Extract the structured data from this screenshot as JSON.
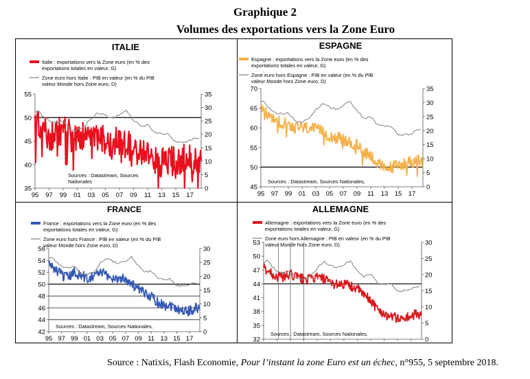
{
  "page": {
    "title_line1": "Graphique 2",
    "title_line2": "Volumes des exportations vers la Zone Euro",
    "source_prefix": "Source : Natixis, Flash Economie, ",
    "source_italic": "Pour l’instant la zone Euro est un échec",
    "source_suffix": ", n°955, 5 septembre 2018."
  },
  "chart_data": [
    {
      "type": "line",
      "title": "ITALIE",
      "x_ticks": [
        "95",
        "97",
        "99",
        "01",
        "03",
        "05",
        "07",
        "09",
        "11",
        "13",
        "15",
        "17"
      ],
      "x_range": [
        1995,
        2018.6
      ],
      "left_axis": {
        "range": [
          35,
          55
        ],
        "ticks": [
          35,
          40,
          45,
          50,
          55
        ]
      },
      "right_axis": {
        "range": [
          0,
          35
        ],
        "ticks": [
          0,
          5,
          10,
          15,
          20,
          25,
          30,
          35
        ]
      },
      "reference_line": 50,
      "note": "Sources : Datastream, Sources Nationales",
      "series": [
        {
          "name": "Italie : exportations vers la Zone euro (en % des exportations totales en valeur, G)",
          "axis": "left",
          "color": "#e8101e",
          "volatility": 3.2,
          "points": [
            [
              1995,
              49
            ],
            [
              1996,
              47.5
            ],
            [
              1997,
              46
            ],
            [
              1998,
              46.5
            ],
            [
              1999,
              47.5
            ],
            [
              2000,
              47
            ],
            [
              2001,
              46
            ],
            [
              2002,
              46
            ],
            [
              2003,
              46.5
            ],
            [
              2004,
              45.5
            ],
            [
              2005,
              45
            ],
            [
              2006,
              45
            ],
            [
              2007,
              44.5
            ],
            [
              2008,
              44
            ],
            [
              2009,
              44
            ],
            [
              2010,
              42.5
            ],
            [
              2011,
              42
            ],
            [
              2012,
              41
            ],
            [
              2013,
              40.5
            ],
            [
              2014,
              41
            ],
            [
              2015,
              40.5
            ],
            [
              2016,
              41.5
            ],
            [
              2017,
              41
            ],
            [
              2018,
              41
            ],
            [
              2018.6,
              40.5
            ]
          ]
        },
        {
          "name": "Zone euro hors Italie : PIB en valeur (en % du PIB valeur Monde hors Zone euro, D)",
          "axis": "right",
          "color": "#8a8a8a",
          "points": [
            [
              1995,
              28.5
            ],
            [
              1995.5,
              29
            ],
            [
              1996,
              27
            ],
            [
              1997,
              25
            ],
            [
              1998,
              24.5
            ],
            [
              1999,
              25
            ],
            [
              2000,
              22
            ],
            [
              2001,
              21.5
            ],
            [
              2002,
              23
            ],
            [
              2003,
              26
            ],
            [
              2004,
              28
            ],
            [
              2005,
              27
            ],
            [
              2006,
              26
            ],
            [
              2007,
              27.5
            ],
            [
              2008,
              29
            ],
            [
              2008.5,
              27
            ],
            [
              2009,
              25.5
            ],
            [
              2010,
              23
            ],
            [
              2011,
              23.5
            ],
            [
              2012,
              20.5
            ],
            [
              2013,
              20
            ],
            [
              2014,
              20
            ],
            [
              2015,
              17
            ],
            [
              2016,
              17
            ],
            [
              2017,
              17.5
            ],
            [
              2017.5,
              18.5
            ],
            [
              2018.3,
              18.5
            ]
          ]
        }
      ]
    },
    {
      "type": "line",
      "title": "ESPAGNE",
      "x_ticks": [
        "95",
        "97",
        "99",
        "01",
        "03",
        "05",
        "07",
        "09",
        "11",
        "13",
        "15",
        "17"
      ],
      "x_range": [
        1995,
        2018.6
      ],
      "left_axis": {
        "range": [
          45,
          70
        ],
        "ticks": [
          45,
          50,
          55,
          60,
          65,
          70
        ]
      },
      "right_axis": {
        "range": [
          0,
          35
        ],
        "ticks": [
          0,
          5,
          10,
          15,
          20,
          25,
          30,
          35
        ]
      },
      "reference_line": 50,
      "note": "Sources : Datastream, Sources Nationales,",
      "series": [
        {
          "name": "Espagne : exportations vers la Zone euro (en % des exportations totales en valeur, G)",
          "axis": "left",
          "color": "#f5b04a",
          "volatility": 1.6,
          "points": [
            [
              1995,
              65
            ],
            [
              1996,
              63
            ],
            [
              1997,
              62
            ],
            [
              1998,
              61.5
            ],
            [
              1999,
              61
            ],
            [
              2000,
              60
            ],
            [
              2001,
              60
            ],
            [
              2002,
              60
            ],
            [
              2003,
              59.5
            ],
            [
              2004,
              59
            ],
            [
              2005,
              58
            ],
            [
              2006,
              57.5
            ],
            [
              2007,
              57
            ],
            [
              2008,
              56
            ],
            [
              2009,
              55.5
            ],
            [
              2010,
              54
            ],
            [
              2011,
              53
            ],
            [
              2012,
              51
            ],
            [
              2013,
              49.5
            ],
            [
              2014,
              50
            ],
            [
              2015,
              50.5
            ],
            [
              2016,
              51
            ],
            [
              2017,
              51.5
            ],
            [
              2018,
              51.5
            ],
            [
              2018.6,
              51
            ]
          ]
        },
        {
          "name": "Zone euro hors Espagne : PIB en valeur (en % du PIB valeur Monde hors Zone euro, D)",
          "axis": "right",
          "color": "#8a8a8a",
          "points": [
            [
              1995,
              30
            ],
            [
              1995.5,
              30.5
            ],
            [
              1996,
              28.5
            ],
            [
              1997,
              26.5
            ],
            [
              1998,
              26
            ],
            [
              1999,
              26.5
            ],
            [
              2000,
              23.5
            ],
            [
              2001,
              23
            ],
            [
              2002,
              24.5
            ],
            [
              2003,
              27.5
            ],
            [
              2004,
              29.5
            ],
            [
              2005,
              28.5
            ],
            [
              2006,
              27.5
            ],
            [
              2007,
              29
            ],
            [
              2008,
              30.5
            ],
            [
              2008.5,
              28.5
            ],
            [
              2009,
              27
            ],
            [
              2010,
              24.5
            ],
            [
              2011,
              25
            ],
            [
              2012,
              22
            ],
            [
              2013,
              21.5
            ],
            [
              2014,
              21.5
            ],
            [
              2015,
              18.5
            ],
            [
              2016,
              18.5
            ],
            [
              2017,
              19
            ],
            [
              2017.5,
              20
            ],
            [
              2018.3,
              20
            ]
          ]
        }
      ]
    },
    {
      "type": "line",
      "title": "FRANCE",
      "x_ticks": [
        "95",
        "97",
        "99",
        "01",
        "03",
        "05",
        "07",
        "09",
        "11",
        "13",
        "15",
        "17"
      ],
      "x_range": [
        1995,
        2018.6
      ],
      "left_axis": {
        "range": [
          42,
          56
        ],
        "ticks": [
          42,
          44,
          46,
          48,
          50,
          52,
          54,
          56
        ]
      },
      "right_axis": {
        "range": [
          0,
          30
        ],
        "ticks": [
          0,
          5,
          10,
          15,
          20,
          25,
          30
        ]
      },
      "reference_line": 50,
      "reference_lines_extra": [
        48,
        46,
        44
      ],
      "note": "Sources : Datastream, Sources Nationales,",
      "series": [
        {
          "name": "France : exportations vers la Zone euro (en % des exportations totales en valeur, G)",
          "axis": "left",
          "color": "#3458b3",
          "volatility": 0.9,
          "points": [
            [
              1995,
              53.5
            ],
            [
              1996,
              52.5
            ],
            [
              1997,
              51.5
            ],
            [
              1998,
              51
            ],
            [
              1999,
              52
            ],
            [
              2000,
              51.5
            ],
            [
              2001,
              51
            ],
            [
              2002,
              51.5
            ],
            [
              2003,
              52
            ],
            [
              2004,
              51.5
            ],
            [
              2005,
              51
            ],
            [
              2006,
              51
            ],
            [
              2007,
              51
            ],
            [
              2008,
              50
            ],
            [
              2009,
              49
            ],
            [
              2010,
              48.5
            ],
            [
              2011,
              48
            ],
            [
              2012,
              47
            ],
            [
              2013,
              46.5
            ],
            [
              2014,
              46.5
            ],
            [
              2015,
              46
            ],
            [
              2016,
              45.5
            ],
            [
              2017,
              45.5
            ],
            [
              2018,
              46
            ],
            [
              2018.6,
              46
            ]
          ]
        },
        {
          "name": "Zone euro hors France : PIB en valeur (en % du PIB valeur Monde hors Zone euro, D)",
          "axis": "right",
          "color": "#8a8a8a",
          "points": [
            [
              1995,
              26.5
            ],
            [
              1995.5,
              27
            ],
            [
              1996,
              25.5
            ],
            [
              1997,
              23.5
            ],
            [
              1998,
              23
            ],
            [
              1999,
              23.5
            ],
            [
              2000,
              21
            ],
            [
              2001,
              20.5
            ],
            [
              2002,
              21.5
            ],
            [
              2003,
              24.5
            ],
            [
              2004,
              26.5
            ],
            [
              2005,
              25.5
            ],
            [
              2006,
              24.5
            ],
            [
              2007,
              25.5
            ],
            [
              2008,
              27
            ],
            [
              2008.5,
              25
            ],
            [
              2009,
              24
            ],
            [
              2010,
              21.5
            ],
            [
              2011,
              22
            ],
            [
              2012,
              19.5
            ],
            [
              2013,
              19
            ],
            [
              2014,
              19
            ],
            [
              2015,
              16.5
            ],
            [
              2016,
              16.5
            ],
            [
              2017,
              17
            ],
            [
              2017.5,
              17.5
            ],
            [
              2018.3,
              17.5
            ]
          ]
        }
      ]
    },
    {
      "type": "line",
      "title": "ALLEMAGNE",
      "x_ticks": [
        "95",
        "97",
        "99",
        "01",
        "03",
        "05",
        "07",
        "09",
        "11",
        "13",
        "15",
        "17"
      ],
      "x_range": [
        1995,
        2018.6
      ],
      "left_axis": {
        "range": [
          32,
          53
        ],
        "ticks": [
          32,
          35,
          38,
          41,
          44,
          47,
          50,
          53
        ]
      },
      "right_axis": {
        "range": [
          0,
          30
        ],
        "ticks": [
          0,
          5,
          10,
          15,
          20,
          25,
          30
        ]
      },
      "reference_line": 44,
      "vertical_markers": [
        1997.2,
        1999,
        2001
      ],
      "note": "Sources : Datastream, Sources Nationales,",
      "series": [
        {
          "name": "Allemagne : exportations vers la Zone euro (en % des exportations totales en valeur, G)",
          "axis": "left",
          "color": "#d7191c",
          "volatility": 1.1,
          "points": [
            [
              1995,
              47.5
            ],
            [
              1996,
              46.5
            ],
            [
              1997,
              45.5
            ],
            [
              1998,
              45.5
            ],
            [
              1999,
              46
            ],
            [
              2000,
              45.5
            ],
            [
              2001,
              45
            ],
            [
              2002,
              45
            ],
            [
              2003,
              45.5
            ],
            [
              2004,
              45
            ],
            [
              2005,
              44
            ],
            [
              2006,
              44
            ],
            [
              2007,
              44
            ],
            [
              2008,
              43.5
            ],
            [
              2009,
              43
            ],
            [
              2010,
              41.5
            ],
            [
              2011,
              40.5
            ],
            [
              2012,
              38.5
            ],
            [
              2013,
              37.5
            ],
            [
              2014,
              37
            ],
            [
              2015,
              36.5
            ],
            [
              2016,
              36.5
            ],
            [
              2017,
              37
            ],
            [
              2018,
              37.5
            ],
            [
              2018.6,
              37.5
            ]
          ]
        },
        {
          "name": "Zone euro hors Allemagne : PIB en valeur (en % du PIB valeur Monde hors Zone euro, D)",
          "axis": "right",
          "color": "#8a8a8a",
          "points": [
            [
              1995,
              24
            ],
            [
              1995.5,
              24.5
            ],
            [
              1996,
              23
            ],
            [
              1997,
              21
            ],
            [
              1998,
              20.5
            ],
            [
              1999,
              21
            ],
            [
              2000,
              19
            ],
            [
              2001,
              18.5
            ],
            [
              2002,
              19.5
            ],
            [
              2003,
              22
            ],
            [
              2004,
              24
            ],
            [
              2005,
              23
            ],
            [
              2006,
              22
            ],
            [
              2007,
              23
            ],
            [
              2008,
              24.5
            ],
            [
              2008.5,
              22.5
            ],
            [
              2009,
              21.5
            ],
            [
              2010,
              19.5
            ],
            [
              2011,
              20
            ],
            [
              2012,
              17.5
            ],
            [
              2013,
              17
            ],
            [
              2014,
              17
            ],
            [
              2015,
              15
            ],
            [
              2016,
              15
            ],
            [
              2017,
              15.5
            ],
            [
              2017.5,
              16
            ],
            [
              2018.3,
              16
            ]
          ]
        }
      ]
    }
  ]
}
